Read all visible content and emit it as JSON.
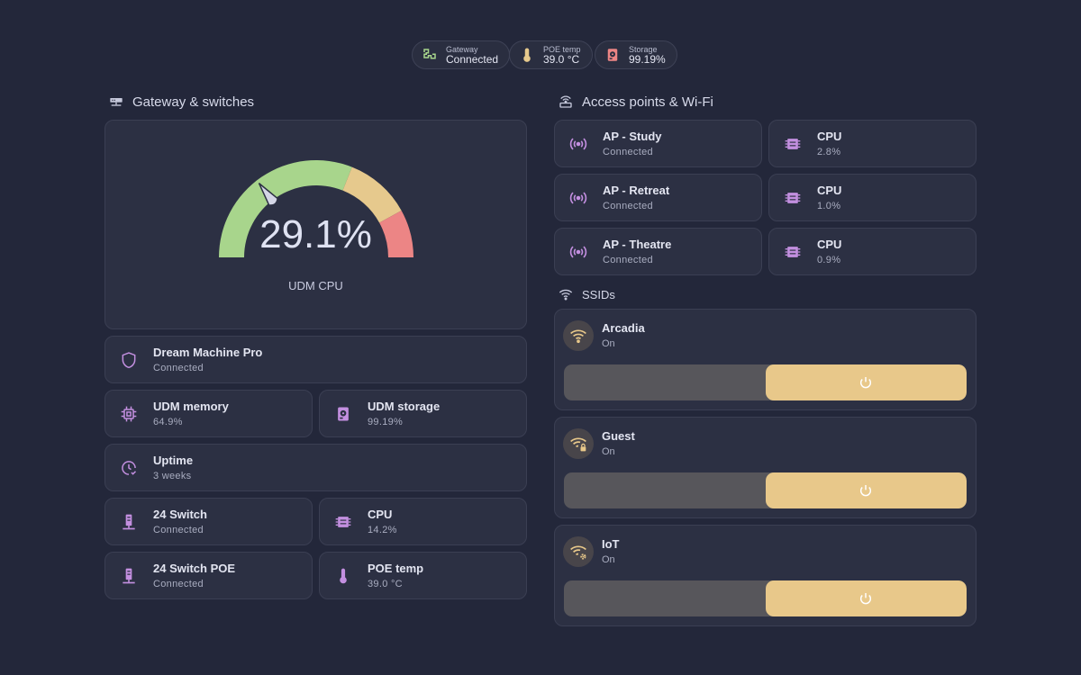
{
  "status_chips": [
    {
      "label": "Gateway",
      "value": "Connected",
      "icon": "network-icon"
    },
    {
      "label": "POE temp",
      "value": "39.0 °C",
      "icon": "thermometer-icon"
    },
    {
      "label": "Storage",
      "value": "99.19%",
      "icon": "harddisk-icon"
    }
  ],
  "gateway_section": {
    "title": "Gateway & switches",
    "gauge": {
      "value_text": "29.1%",
      "value": 29.1,
      "min": 0,
      "max": 100,
      "label": "UDM CPU",
      "colors": {
        "low": "#a8d58c",
        "mid": "#e6c98d",
        "high": "#ec8585"
      }
    },
    "dream_machine": {
      "name": "Dream Machine Pro",
      "state": "Connected"
    },
    "udm_memory": {
      "name": "UDM memory",
      "state": "64.9%"
    },
    "udm_storage": {
      "name": "UDM storage",
      "state": "99.19%"
    },
    "uptime": {
      "name": "Uptime",
      "state": "3 weeks"
    },
    "switch24": {
      "name": "24 Switch",
      "state": "Connected"
    },
    "switch24_cpu": {
      "name": "CPU",
      "state": "14.2%"
    },
    "switch24poe": {
      "name": "24 Switch POE",
      "state": "Connected"
    },
    "poe_temp": {
      "name": "POE temp",
      "state": "39.0 °C"
    }
  },
  "ap_section": {
    "title": "Access points & Wi-Fi",
    "aps": [
      {
        "name": "AP - Study",
        "state": "Connected",
        "cpu_label": "CPU",
        "cpu": "2.8%"
      },
      {
        "name": "AP - Retreat",
        "state": "Connected",
        "cpu_label": "CPU",
        "cpu": "1.0%"
      },
      {
        "name": "AP - Theatre",
        "state": "Connected",
        "cpu_label": "CPU",
        "cpu": "0.9%"
      }
    ]
  },
  "ssid_section": {
    "title": "SSIDs",
    "ssids": [
      {
        "name": "Arcadia",
        "state": "On",
        "icon": "wifi-icon"
      },
      {
        "name": "Guest",
        "state": "On",
        "icon": "wifi-lock-icon"
      },
      {
        "name": "IoT",
        "state": "On",
        "icon": "wifi-cog-icon"
      }
    ]
  },
  "colors": {
    "accent": "#c38fe0",
    "toggle_on": "#e8c88a",
    "background": "#23273a",
    "card": "#2c3043"
  }
}
